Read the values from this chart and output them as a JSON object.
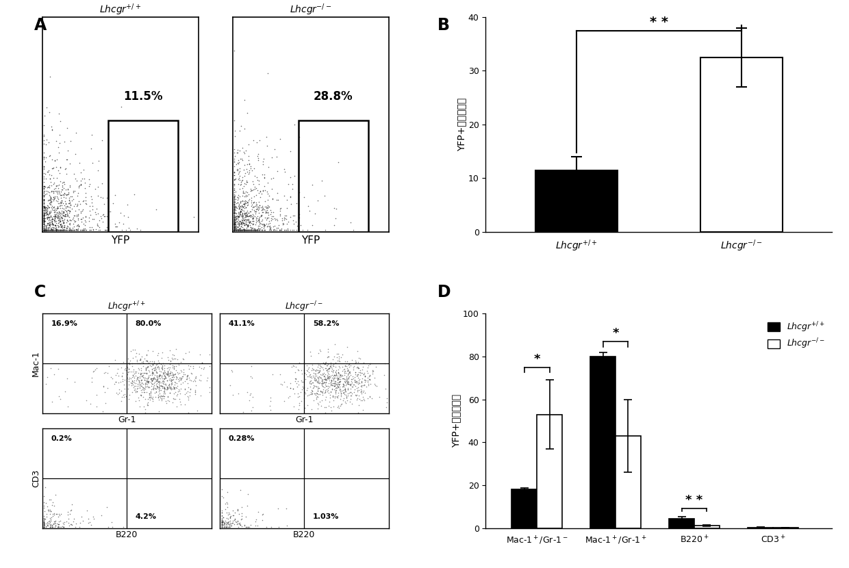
{
  "panel_B": {
    "categories": [
      "Lhcgr+/+",
      "Lhcgr-/-"
    ],
    "values": [
      11.5,
      32.5
    ],
    "errors": [
      2.5,
      5.5
    ],
    "colors": [
      "black",
      "white"
    ],
    "ylabel": "YFP+细胞百分比",
    "ylim": [
      0,
      40
    ],
    "yticks": [
      0,
      10,
      20,
      30,
      40
    ],
    "significance": "**"
  },
  "panel_D": {
    "categories": [
      "Mac-1+/Gr-1-",
      "Mac-1+/Gr-1+",
      "B220+",
      "CD3+"
    ],
    "lhcgr_pp_values": [
      18,
      80,
      4.5,
      0.4
    ],
    "lhcgr_pp_errors": [
      0.8,
      2,
      0.8,
      0.1
    ],
    "lhcgr_m_values": [
      53,
      43,
      1.2,
      0.3
    ],
    "lhcgr_m_errors": [
      16,
      17,
      0.4,
      0.1
    ],
    "ylabel": "YFP+细胞百分比",
    "ylim": [
      0,
      100
    ],
    "yticks": [
      0,
      20,
      40,
      60,
      80,
      100
    ],
    "significance": [
      "*",
      "*",
      "**",
      ""
    ]
  },
  "panel_A": {
    "left_label": "Lhcgr$^{+/+}$",
    "right_label": "Lhcgr$^{-/-}$",
    "left_pct": "11.5%",
    "right_pct": "28.8%",
    "xlabel": "YFP"
  },
  "panel_C": {
    "top_left_label": "Lhcgr$^{+/+}$",
    "top_right_label": "Lhcgr$^{-/-}$",
    "top_left_vals": [
      "16.9%",
      "80.0%"
    ],
    "top_right_vals": [
      "41.1%",
      "58.2%"
    ],
    "bottom_left_vals": [
      "0.2%",
      "4.2%"
    ],
    "bottom_right_vals": [
      "0.28%",
      "1.03%"
    ],
    "ylabel_top": "Mac-1",
    "ylabel_bottom": "CD3",
    "xlabel_top": "Gr-1",
    "xlabel_bottom": "B220"
  },
  "background_color": "#ffffff",
  "text_color": "#000000"
}
